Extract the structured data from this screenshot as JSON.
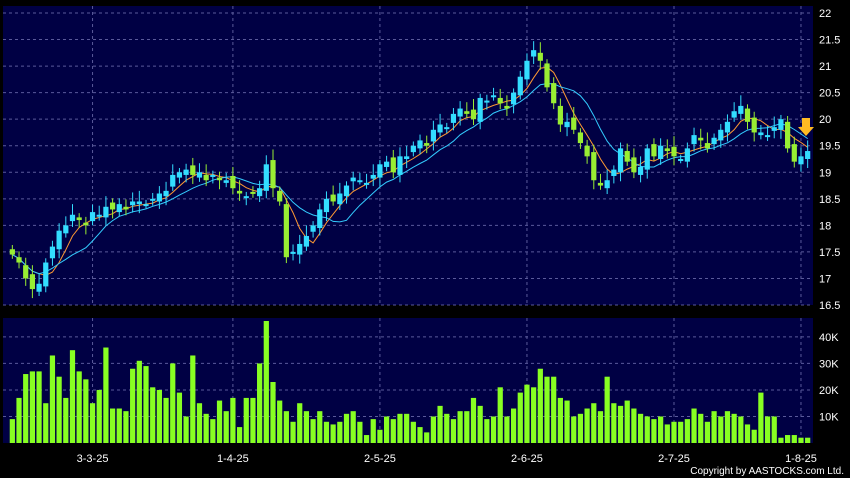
{
  "chart_data": [
    {
      "type": "candlestick",
      "title": "",
      "ylim": [
        16.5,
        22
      ],
      "y_ticks": [
        "22",
        "21.5",
        "21",
        "20.5",
        "20",
        "19.5",
        "19",
        "18.5",
        "18",
        "17.5",
        "17",
        "16.5"
      ],
      "x_ticks": [
        "3-3-25",
        "1-4-25",
        "2-5-25",
        "2-6-25",
        "2-7-25",
        "1-8-25"
      ],
      "grid": true,
      "up_color": "#33ddff",
      "down_color": "#99ee33",
      "ma_colors": [
        "#ff9933",
        "#33ccff"
      ],
      "marker_color": "#ffbb22",
      "background": "#000044",
      "close": [
        17.45,
        17.3,
        17.0,
        16.8,
        16.9,
        17.3,
        17.6,
        17.9,
        18.0,
        18.2,
        18.1,
        18.0,
        18.25,
        18.2,
        18.35,
        18.3,
        18.4,
        18.3,
        18.45,
        18.45,
        18.4,
        18.5,
        18.6,
        18.65,
        18.95,
        19.0,
        19.05,
        18.95,
        19.0,
        18.85,
        18.95,
        18.85,
        18.85,
        18.7,
        18.6,
        18.55,
        18.6,
        18.7,
        19.15,
        18.7,
        18.45,
        17.4,
        17.5,
        17.65,
        17.8,
        18.0,
        18.3,
        18.5,
        18.45,
        18.6,
        18.75,
        18.9,
        18.85,
        18.8,
        18.95,
        19.15,
        19.2,
        19.0,
        19.3,
        19.3,
        19.5,
        19.6,
        19.5,
        19.8,
        19.9,
        19.85,
        20.1,
        20.2,
        20.1,
        20.0,
        20.4,
        20.35,
        20.45,
        20.3,
        20.2,
        20.5,
        20.8,
        21.1,
        21.3,
        21.1,
        20.6,
        20.3,
        19.9,
        19.95,
        19.8,
        19.55,
        19.3,
        18.85,
        18.75,
        18.85,
        19.05,
        19.45,
        19.2,
        19.0,
        19.1,
        19.45,
        19.3,
        19.5,
        19.4,
        19.3,
        19.25,
        19.45,
        19.7,
        19.6,
        19.45,
        19.65,
        19.8,
        19.95,
        20.15,
        20.25,
        19.95,
        19.75,
        19.75,
        19.7,
        19.85,
        20.0,
        19.45,
        19.2,
        19.3,
        19.4
      ],
      "volume": [
        9000,
        17000,
        26000,
        27000,
        27000,
        15000,
        33000,
        25000,
        17000,
        35000,
        27000,
        24000,
        15000,
        20000,
        36000,
        13000,
        13000,
        12000,
        28000,
        31000,
        29000,
        21000,
        20000,
        17000,
        30000,
        19000,
        10000,
        33000,
        15000,
        11000,
        9000,
        16000,
        12000,
        17000,
        6000,
        17000,
        17000,
        30000,
        46000,
        23000,
        16000,
        12000,
        8000,
        15000,
        12000,
        9000,
        12000,
        8000,
        7000,
        8000,
        11000,
        12000,
        8000,
        3000,
        9000,
        5000,
        10000,
        9000,
        11000,
        11000,
        8000,
        6000,
        4000,
        10000,
        14000,
        11000,
        9000,
        12000,
        12000,
        17000,
        14000,
        9000,
        10000,
        21000,
        10000,
        13000,
        19000,
        22000,
        21000,
        28000,
        25000,
        25000,
        17000,
        16000,
        10000,
        11000,
        13000,
        15000,
        12000,
        25000,
        15000,
        14000,
        16000,
        13000,
        11000,
        10000,
        9000,
        10000,
        7000,
        8000,
        8000,
        9000,
        13000,
        11000,
        8000,
        12000,
        10000,
        12000,
        11000,
        10000,
        7000,
        5000,
        19000,
        10000,
        10000,
        2000,
        3000,
        3000,
        2000,
        2000
      ],
      "y2_ticks": [
        "40K",
        "30K",
        "20K",
        "10K"
      ],
      "y2lim": [
        0,
        46000
      ]
    }
  ],
  "copyright": "Copyright by AASTOCKS.com Ltd."
}
